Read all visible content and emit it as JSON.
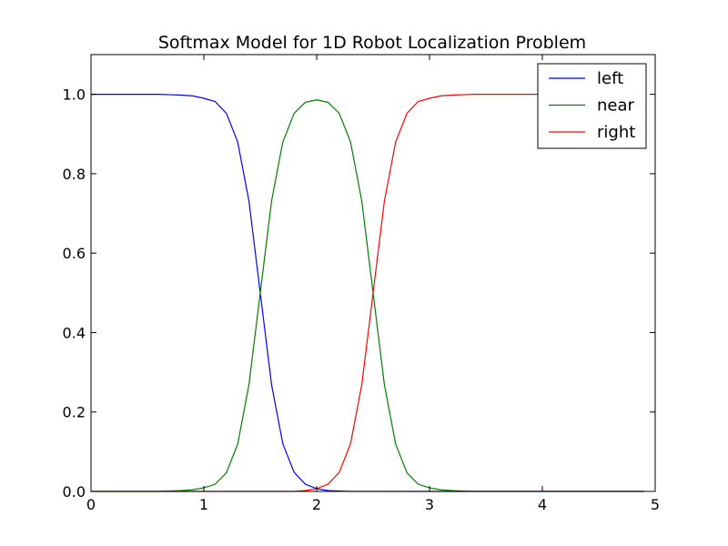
{
  "chart_data": {
    "type": "line",
    "title": "Softmax Model for 1D Robot Localization Problem",
    "xlabel": "",
    "ylabel": "",
    "xlim": [
      0,
      5
    ],
    "ylim": [
      0,
      1.1
    ],
    "xticks": [
      0,
      1,
      2,
      3,
      4,
      5
    ],
    "xtick_labels": [
      "0",
      "1",
      "2",
      "3",
      "4",
      "5"
    ],
    "yticks": [
      0,
      0.2,
      0.4,
      0.6,
      0.8,
      1.0
    ],
    "ytick_labels": [
      "0.0",
      "0.2",
      "0.4",
      "0.6",
      "0.8",
      "1.0"
    ],
    "grid": false,
    "legend_position": "top-right",
    "x": [
      0.0,
      0.1,
      0.2,
      0.3,
      0.4,
      0.5,
      0.6,
      0.7,
      0.8,
      0.9,
      1.0,
      1.1,
      1.2,
      1.3,
      1.4,
      1.5,
      1.6,
      1.7,
      1.8,
      1.9,
      2.0,
      2.1,
      2.2,
      2.3,
      2.4,
      2.5,
      2.6,
      2.7,
      2.8,
      2.9,
      3.0,
      3.1,
      3.2,
      3.3,
      3.4,
      3.5,
      3.6,
      3.7,
      3.8,
      3.9,
      4.0,
      4.1,
      4.2,
      4.3,
      4.4,
      4.5,
      4.6,
      4.7,
      4.8,
      4.9
    ],
    "series": [
      {
        "name": "left",
        "color": "#0000ff",
        "values": [
          1.0,
          1.0,
          1.0,
          1.0,
          1.0,
          1.0,
          1.0,
          0.999,
          0.998,
          0.996,
          0.99,
          0.982,
          0.952,
          0.88,
          0.731,
          0.5,
          0.269,
          0.12,
          0.048,
          0.018,
          0.007,
          0.002,
          0.001,
          0,
          0,
          0,
          0,
          0,
          0,
          0,
          0,
          0,
          0,
          0,
          0,
          0,
          0,
          0,
          0,
          0,
          0,
          0,
          0,
          0,
          0,
          0,
          0,
          0,
          0,
          0
        ]
      },
      {
        "name": "near",
        "color": "#008000",
        "values": [
          0,
          0,
          0,
          0,
          0,
          0,
          0,
          0.001,
          0.002,
          0.004,
          0.009,
          0.018,
          0.047,
          0.119,
          0.269,
          0.5,
          0.731,
          0.88,
          0.952,
          0.98,
          0.986,
          0.98,
          0.952,
          0.88,
          0.731,
          0.5,
          0.269,
          0.119,
          0.047,
          0.018,
          0.009,
          0.004,
          0.002,
          0.001,
          0,
          0,
          0,
          0,
          0,
          0,
          0,
          0,
          0,
          0,
          0,
          0,
          0,
          0,
          0,
          0
        ]
      },
      {
        "name": "right",
        "color": "#ff0000",
        "values": [
          0,
          0,
          0,
          0,
          0,
          0,
          0,
          0,
          0,
          0,
          0,
          0,
          0,
          0,
          0,
          0,
          0,
          0,
          0,
          0.002,
          0.007,
          0.018,
          0.048,
          0.12,
          0.269,
          0.5,
          0.731,
          0.88,
          0.952,
          0.982,
          0.99,
          0.996,
          0.998,
          0.999,
          1.0,
          1.0,
          1.0,
          1.0,
          1.0,
          1.0,
          1.0,
          1.0,
          1.0,
          1.0,
          1.0,
          1.0,
          1.0,
          1.0,
          1.0,
          1.0
        ]
      }
    ]
  }
}
